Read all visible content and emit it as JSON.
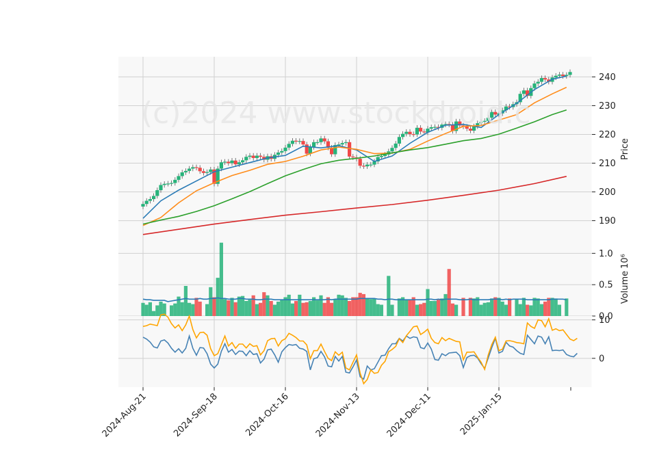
{
  "watermark": "(c)2024 www.stockdroid.c",
  "colors": {
    "panel_bg": "#f8f8f8",
    "grid": "#d0d0d0",
    "up": "#26b37a",
    "down": "#f04848",
    "ma_fast": "#2a7bb6",
    "ma_mid": "#ff8c1a",
    "ma_slow": "#2ca02c",
    "ma_long": "#d62728",
    "osc_fast": "#4682b4",
    "osc_slow": "#ffa500"
  },
  "chart_data": [
    {
      "type": "candlestick",
      "panel": "price",
      "ylabel": "Price",
      "ylim": [
        183,
        247
      ],
      "yticks": [
        "190",
        "200",
        "210",
        "220",
        "230",
        "240"
      ],
      "x_tick_labels": [
        "2024-Aug-21",
        "2024-Sep-18",
        "2024-Oct-16",
        "2024-Nov-13",
        "2024-Dec-11",
        "2025-Jan-15"
      ],
      "x_tick_positions": [
        0,
        20,
        40,
        60,
        80,
        100
      ],
      "close": [
        195.8,
        196.9,
        197.5,
        198.6,
        200.6,
        202.4,
        202.8,
        202.9,
        203.1,
        204.2,
        205.5,
        206.8,
        207.3,
        208.1,
        208.6,
        208.4,
        207.2,
        206.6,
        206.9,
        207.8,
        202.8,
        208.1,
        210.3,
        210.5,
        210.0,
        210.9,
        209.6,
        210.3,
        211.0,
        212.2,
        212.6,
        211.8,
        212.6,
        212.2,
        211.2,
        212.4,
        211.5,
        212.9,
        213.7,
        214.2,
        215.4,
        216.7,
        217.8,
        217.5,
        217.7,
        216.5,
        213.3,
        215.6,
        217.3,
        217.3,
        218.6,
        217.6,
        215.4,
        213.1,
        216.3,
        216.5,
        217.0,
        217.3,
        212.3,
        212.0,
        211.5,
        209.1,
        208.9,
        209.5,
        209.5,
        210.6,
        212.1,
        212.5,
        213.0,
        214.1,
        215.3,
        216.8,
        219.1,
        220.2,
        220.9,
        220.1,
        220.0,
        222.3,
        221.0,
        220.7,
        222.0,
        222.5,
        222.6,
        222.3,
        223.4,
        223.6,
        223.4,
        221.2,
        224.5,
        223.1,
        222.7,
        222.0,
        221.3,
        222.8,
        223.9,
        224.4,
        224.7,
        225.8,
        227.8,
        226.9,
        227.3,
        228.4,
        229.7,
        229.5,
        230.5,
        231.2,
        234.1,
        235.3,
        233.4,
        236.1,
        237.7,
        238.3,
        239.6,
        239.1,
        238.3,
        239.8,
        240.4,
        240.8,
        240.3,
        240.7,
        241.7
      ],
      "moving_averages": [
        {
          "color_key": "ma_fast",
          "points": [
            [
              0,
              190.8
            ],
            [
              5,
              196.9
            ],
            [
              10,
              200.6
            ],
            [
              15,
              203.8
            ],
            [
              20,
              207.0
            ],
            [
              25,
              208.6
            ],
            [
              30,
              210.2
            ],
            [
              35,
              211.8
            ],
            [
              40,
              212.7
            ],
            [
              45,
              215.9
            ],
            [
              50,
              215.3
            ],
            [
              55,
              216.1
            ],
            [
              60,
              214.6
            ],
            [
              65,
              210.6
            ],
            [
              70,
              212.5
            ],
            [
              75,
              216.9
            ],
            [
              80,
              220.7
            ],
            [
              85,
              223.2
            ],
            [
              90,
              223.5
            ],
            [
              95,
              222.4
            ],
            [
              100,
              226.9
            ],
            [
              105,
              230.8
            ],
            [
              110,
              235.6
            ],
            [
              115,
              239.2
            ],
            [
              119,
              240.3
            ]
          ]
        },
        {
          "color_key": "ma_mid",
          "points": [
            [
              0,
              188.3
            ],
            [
              5,
              191.1
            ],
            [
              10,
              196.2
            ],
            [
              15,
              200.4
            ],
            [
              20,
              203.2
            ],
            [
              25,
              205.7
            ],
            [
              30,
              207.5
            ],
            [
              35,
              209.6
            ],
            [
              40,
              210.6
            ],
            [
              45,
              212.4
            ],
            [
              50,
              214.6
            ],
            [
              55,
              215.6
            ],
            [
              60,
              214.8
            ],
            [
              65,
              213.3
            ],
            [
              70,
              213.5
            ],
            [
              75,
              214.8
            ],
            [
              80,
              217.7
            ],
            [
              85,
              220.3
            ],
            [
              90,
              222.8
            ],
            [
              95,
              223.1
            ],
            [
              100,
              225.0
            ],
            [
              105,
              226.9
            ],
            [
              110,
              231.0
            ],
            [
              115,
              234.1
            ],
            [
              119,
              236.4
            ]
          ]
        },
        {
          "color_key": "ma_slow",
          "points": [
            [
              0,
              188.8
            ],
            [
              5,
              190.2
            ],
            [
              10,
              191.5
            ],
            [
              15,
              193.2
            ],
            [
              20,
              195.2
            ],
            [
              25,
              197.6
            ],
            [
              30,
              200.1
            ],
            [
              35,
              202.9
            ],
            [
              40,
              205.6
            ],
            [
              45,
              207.8
            ],
            [
              50,
              209.8
            ],
            [
              55,
              211.0
            ],
            [
              60,
              211.7
            ],
            [
              65,
              212.5
            ],
            [
              70,
              213.6
            ],
            [
              75,
              214.6
            ],
            [
              80,
              215.4
            ],
            [
              85,
              216.6
            ],
            [
              90,
              217.8
            ],
            [
              95,
              218.6
            ],
            [
              100,
              220.1
            ],
            [
              105,
              222.2
            ],
            [
              110,
              224.4
            ],
            [
              115,
              226.9
            ],
            [
              119,
              228.5
            ]
          ]
        },
        {
          "color_key": "ma_long",
          "points": [
            [
              0,
              185.2
            ],
            [
              10,
              187.0
            ],
            [
              20,
              188.8
            ],
            [
              30,
              190.4
            ],
            [
              40,
              191.9
            ],
            [
              50,
              193.1
            ],
            [
              60,
              194.4
            ],
            [
              70,
              195.6
            ],
            [
              80,
              197.1
            ],
            [
              90,
              198.8
            ],
            [
              100,
              200.6
            ],
            [
              110,
              202.9
            ],
            [
              119,
              205.4
            ]
          ]
        }
      ]
    },
    {
      "type": "bar",
      "panel": "volume",
      "ylabel": "Volume",
      "ylabel_multiplier": "10^6",
      "ylim": [
        0,
        1.2
      ],
      "yticks": [
        "0.0",
        "0.5",
        "1.0"
      ],
      "values": [
        0.21,
        0.18,
        0.22,
        0.08,
        0.17,
        0.23,
        0.2,
        0.0,
        0.17,
        0.2,
        0.31,
        0.22,
        0.48,
        0.21,
        0.19,
        0.29,
        0.23,
        0.0,
        0.19,
        0.46,
        0.3,
        0.61,
        1.17,
        0.27,
        0.25,
        0.29,
        0.22,
        0.31,
        0.32,
        0.24,
        0.26,
        0.33,
        0.19,
        0.21,
        0.38,
        0.33,
        0.24,
        0.18,
        0.23,
        0.26,
        0.3,
        0.34,
        0.2,
        0.24,
        0.34,
        0.21,
        0.22,
        0.24,
        0.3,
        0.25,
        0.33,
        0.21,
        0.3,
        0.21,
        0.27,
        0.34,
        0.33,
        0.29,
        0.24,
        0.3,
        0.3,
        0.37,
        0.35,
        0.28,
        0.27,
        0.28,
        0.19,
        0.18,
        0.0,
        0.64,
        0.18,
        0.0,
        0.28,
        0.3,
        0.26,
        0.26,
        0.3,
        0.18,
        0.19,
        0.21,
        0.43,
        0.24,
        0.24,
        0.26,
        0.28,
        0.35,
        0.75,
        0.2,
        0.18,
        0.0,
        0.29,
        0.0,
        0.29,
        0.28,
        0.3,
        0.18,
        0.21,
        0.22,
        0.28,
        0.3,
        0.29,
        0.23,
        0.18,
        0.28,
        0.0,
        0.27,
        0.19,
        0.29,
        0.18,
        0.17,
        0.29,
        0.28,
        0.19,
        0.23,
        0.29,
        0.29,
        0.28,
        0.18,
        0.0,
        0.28
      ],
      "moving_average": [
        0.27,
        0.26,
        0.26,
        0.25,
        0.25,
        0.25,
        0.25,
        0.23,
        0.24,
        0.25,
        0.26,
        0.27,
        0.28,
        0.27,
        0.27,
        0.27,
        0.28,
        0.27,
        0.27,
        0.28,
        0.28,
        0.29,
        0.28,
        0.28,
        0.27,
        0.27,
        0.27,
        0.28,
        0.28,
        0.27,
        0.27,
        0.27,
        0.26,
        0.26,
        0.27,
        0.27,
        0.27,
        0.26,
        0.26,
        0.26,
        0.26,
        0.26,
        0.26,
        0.26,
        0.26,
        0.26,
        0.26,
        0.26,
        0.26,
        0.26,
        0.26,
        0.26,
        0.27,
        0.26,
        0.27,
        0.27,
        0.27,
        0.27,
        0.27,
        0.27,
        0.27,
        0.28,
        0.28,
        0.28,
        0.28,
        0.28,
        0.27,
        0.27,
        0.26,
        0.27,
        0.27,
        0.26,
        0.26,
        0.26,
        0.26,
        0.26,
        0.26,
        0.26,
        0.26,
        0.26,
        0.27,
        0.27,
        0.26,
        0.27,
        0.26,
        0.27,
        0.27,
        0.27,
        0.27,
        0.26,
        0.26,
        0.26,
        0.27,
        0.26,
        0.26,
        0.26,
        0.26,
        0.26,
        0.27,
        0.27,
        0.27,
        0.26,
        0.27,
        0.26,
        0.27,
        0.27,
        0.27,
        0.27,
        0.26,
        0.26,
        0.26,
        0.26,
        0.26,
        0.26,
        0.26,
        0.27,
        0.27,
        0.27,
        0.27,
        0.26
      ]
    },
    {
      "type": "line",
      "panel": "oscillator",
      "ylim": [
        -7.5,
        11
      ],
      "yticks": [
        "0",
        "10"
      ],
      "series": [
        {
          "color_key": "osc_fast",
          "values": [
            5.5,
            5.0,
            4.2,
            3.0,
            2.7,
            4.5,
            4.8,
            4.0,
            2.6,
            1.6,
            2.5,
            1.4,
            2.6,
            5.8,
            2.6,
            0.8,
            2.8,
            2.7,
            1.2,
            -1.5,
            -2.5,
            -1.5,
            1.8,
            3.8,
            1.6,
            2.3,
            1.0,
            1.9,
            1.8,
            0.7,
            2.0,
            1.0,
            1.2,
            -1.2,
            -0.2,
            2.2,
            2.4,
            0.9,
            -1.0,
            1.7,
            2.8,
            3.6,
            3.4,
            3.6,
            2.6,
            2.4,
            1.8,
            -3.0,
            -0.1,
            0.2,
            1.8,
            0.4,
            -2.0,
            -2.2,
            0.5,
            -0.7,
            0.5,
            -3.6,
            -3.8,
            -2.2,
            -0.4,
            -4.8,
            -5.4,
            -2.0,
            -3.0,
            -2.7,
            -1.0,
            0.7,
            0.8,
            2.5,
            3.8,
            3.8,
            5.2,
            4.5,
            5.8,
            5.2,
            5.6,
            5.4,
            2.8,
            2.5,
            4.0,
            2.4,
            -0.3,
            -0.5,
            1.2,
            0.7,
            1.4,
            1.5,
            1.6,
            0.7,
            -2.4,
            0.2,
            0.7,
            0.8,
            0.1,
            -1.4,
            -2.6,
            0.1,
            2.8,
            5.2,
            1.4,
            1.8,
            4.2,
            3.2,
            2.9,
            2.0,
            1.3,
            1.0,
            6.0,
            4.9,
            3.8,
            5.8,
            5.5,
            3.8,
            5.6,
            2.0,
            2.1,
            2.0,
            2.2,
            1.0,
            0.6,
            0.4,
            1.3
          ]
        },
        {
          "color_key": "osc_slow",
          "values": [
            8.3,
            8.5,
            8.9,
            8.7,
            8.5,
            11.3,
            11.5,
            10.7,
            9.0,
            7.9,
            8.7,
            7.2,
            8.7,
            11.0,
            7.5,
            5.3,
            6.7,
            6.8,
            6.0,
            2.5,
            0.7,
            1.2,
            3.5,
            5.8,
            3.2,
            4.1,
            2.6,
            3.7,
            3.7,
            2.7,
            3.8,
            3.1,
            3.3,
            0.9,
            2.0,
            4.6,
            5.1,
            5.2,
            3.2,
            4.6,
            5.1,
            6.5,
            6.0,
            5.4,
            4.5,
            4.5,
            3.5,
            -0.1,
            2.0,
            2.0,
            3.7,
            1.8,
            0.0,
            -0.6,
            1.7,
            0.8,
            1.6,
            -2.5,
            -3.0,
            -1.0,
            0.9,
            -3.8,
            -6.6,
            -5.5,
            -3.0,
            -3.9,
            -3.7,
            -1.8,
            -0.8,
            1.7,
            2.3,
            3.1,
            5.1,
            4.1,
            5.9,
            7.0,
            8.2,
            8.4,
            6.2,
            6.8,
            7.6,
            5.2,
            4.1,
            3.8,
            5.4,
            4.6,
            5.2,
            4.8,
            4.4,
            4.3,
            -0.4,
            1.6,
            1.6,
            1.7,
            0.3,
            -1.0,
            -2.9,
            0.9,
            3.6,
            5.5,
            2.0,
            2.4,
            4.5,
            4.6,
            4.4,
            4.1,
            4.0,
            3.8,
            9.2,
            8.3,
            7.8,
            10.0,
            9.8,
            8.2,
            10.3,
            7.3,
            7.7,
            7.2,
            7.4,
            6.2,
            5.0,
            4.6,
            5.2
          ]
        }
      ]
    }
  ]
}
